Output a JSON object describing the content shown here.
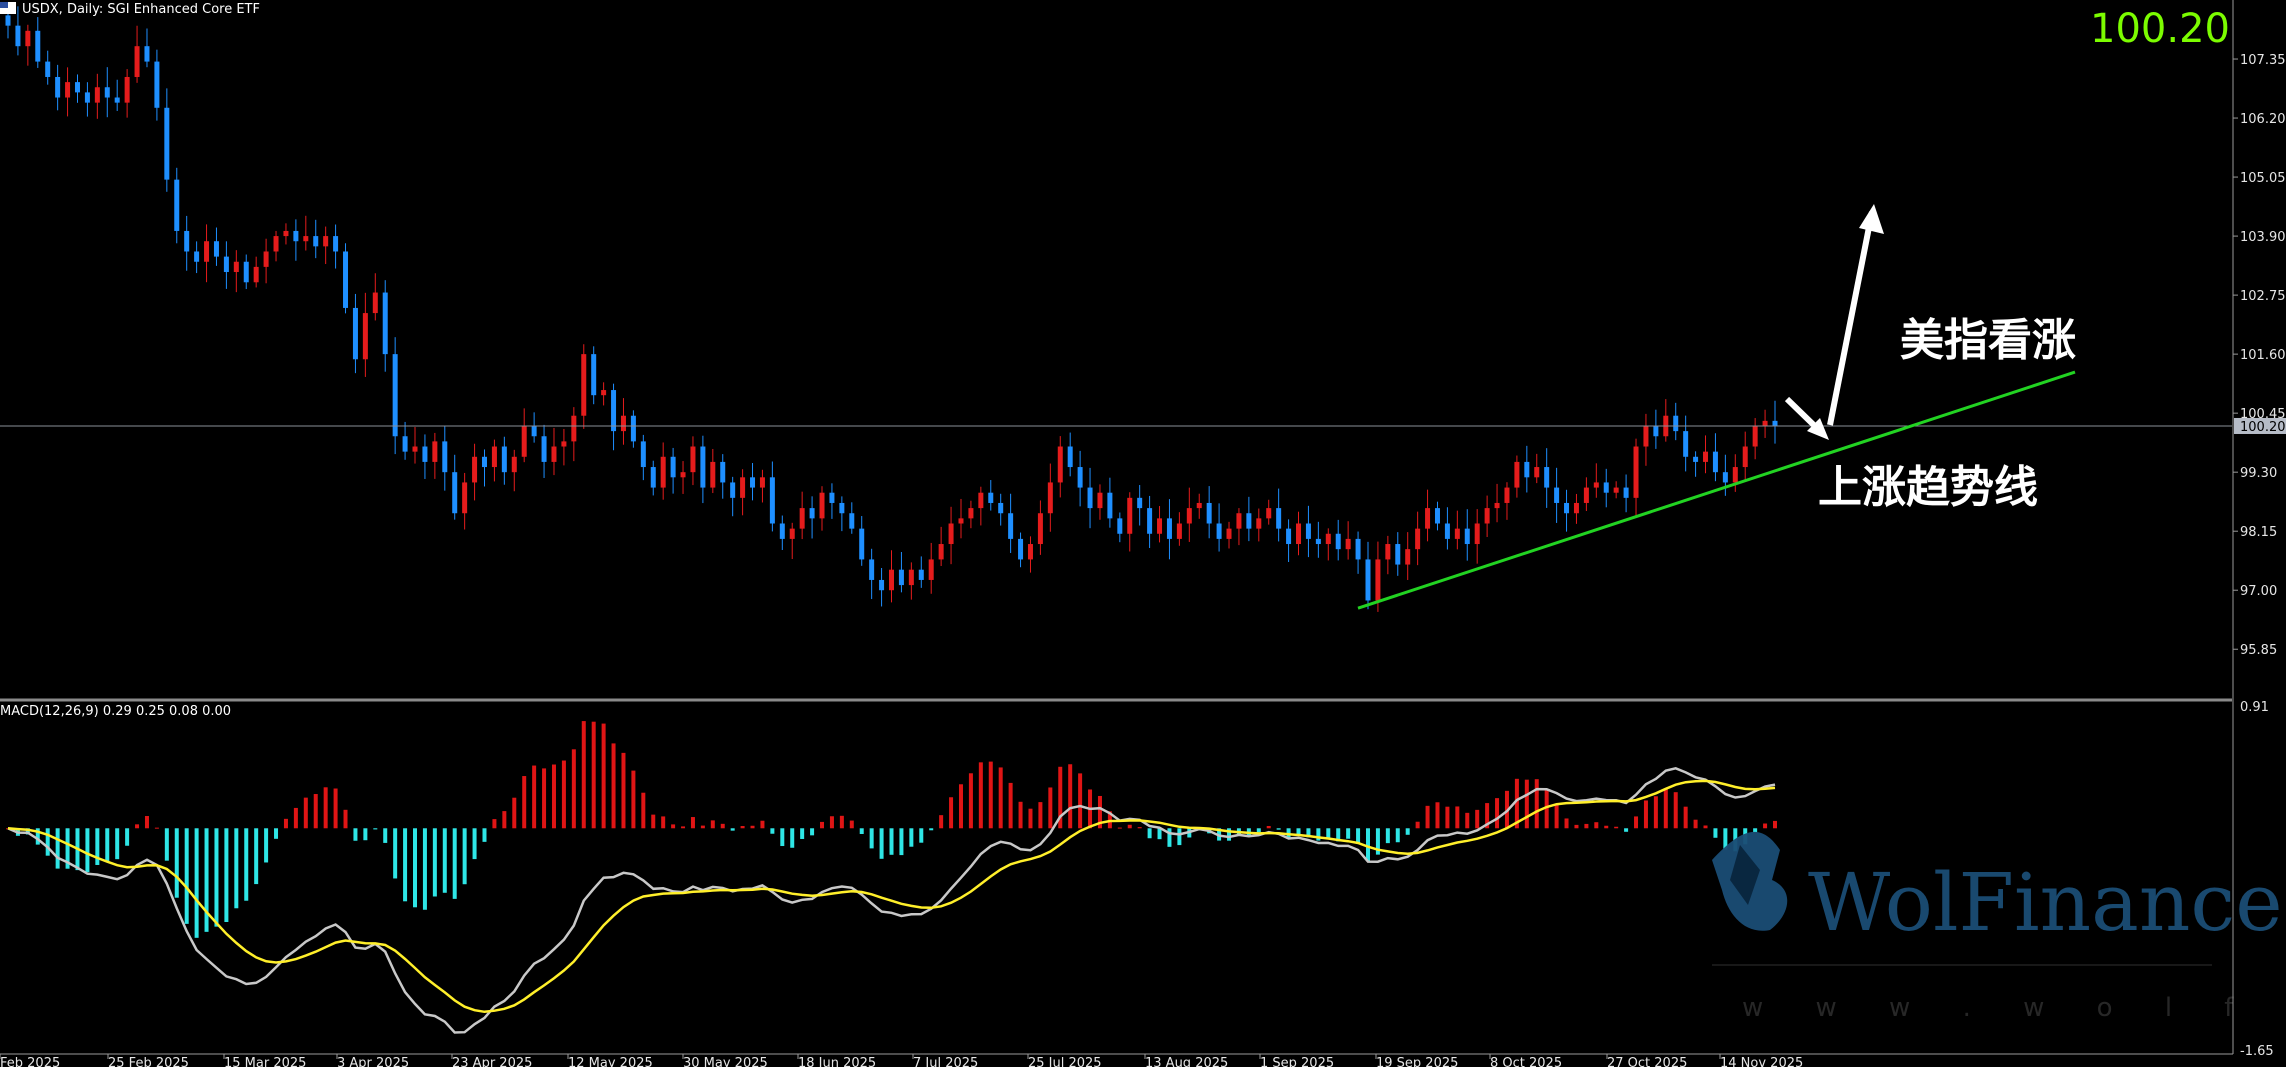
{
  "header": {
    "symbol_label": "USDX, Daily:  SGI Enhanced Core ETF",
    "current_price": "100.20",
    "current_price_tag": "100.20"
  },
  "annotations": {
    "bullish_text": "美指看涨",
    "trendline_text": "上涨趋势线"
  },
  "watermark": {
    "name": "WolFinance",
    "url": "w w w . w o l f i n a n c e . c o m"
  },
  "colors": {
    "background": "#000000",
    "up_candle": "#e51c1c",
    "down_candle": "#1e8fff",
    "trendline": "#22d322",
    "macd_pos": "#e01515",
    "macd_neg": "#2ee6e6",
    "macd_line": "#c8c8c8",
    "signal_line": "#ffef2a",
    "price_text": "#7cfc00"
  },
  "chart_data": [
    {
      "type": "candlestick",
      "title": "USDX, Daily:  SGI Enhanced Core ETF",
      "ylim": [
        94.9,
        108.5
      ],
      "y_ticks": [
        "107.35",
        "106.20",
        "105.05",
        "103.90",
        "102.75",
        "101.60",
        "100.45",
        "99.30",
        "98.15",
        "97.00",
        "95.85"
      ],
      "x_ticks": [
        "Feb 2025",
        "25 Feb 2025",
        "15 Mar 2025",
        "3 Apr 2025",
        "23 Apr 2025",
        "12 May 2025",
        "30 May 2025",
        "18 Jun 2025",
        "7 Jul 2025",
        "25 Jul 2025",
        "13 Aug 2025",
        "1 Sep 2025",
        "19 Sep 2025",
        "8 Oct 2025",
        "27 Oct 2025",
        "14 Nov 2025"
      ],
      "current_price": 100.2,
      "close_series": [
        108.0,
        107.6,
        107.9,
        107.3,
        107.0,
        106.6,
        106.9,
        106.7,
        106.5,
        106.8,
        106.6,
        106.5,
        107.0,
        107.6,
        107.3,
        106.4,
        105.0,
        104.0,
        103.6,
        103.4,
        103.8,
        103.5,
        103.2,
        103.4,
        103.0,
        103.3,
        103.6,
        103.9,
        104.0,
        103.8,
        103.9,
        103.7,
        103.9,
        103.6,
        102.5,
        101.5,
        102.4,
        102.8,
        101.6,
        100.0,
        99.7,
        99.8,
        99.5,
        99.9,
        99.3,
        98.5,
        99.1,
        99.6,
        99.4,
        99.8,
        99.3,
        99.6,
        100.2,
        100.0,
        99.5,
        99.8,
        99.9,
        100.4,
        101.6,
        100.8,
        100.9,
        100.1,
        100.4,
        99.9,
        99.4,
        99.0,
        99.6,
        99.2,
        99.3,
        99.8,
        99.0,
        99.5,
        99.1,
        98.8,
        99.2,
        99.0,
        99.2,
        98.3,
        98.0,
        98.2,
        98.6,
        98.4,
        98.9,
        98.7,
        98.5,
        98.2,
        97.6,
        97.2,
        97.0,
        97.4,
        97.1,
        97.4,
        97.2,
        97.6,
        97.9,
        98.3,
        98.4,
        98.6,
        98.9,
        98.7,
        98.5,
        98.0,
        97.6,
        97.9,
        98.5,
        99.1,
        99.8,
        99.4,
        99.0,
        98.6,
        98.9,
        98.4,
        98.1,
        98.8,
        98.6,
        98.1,
        98.4,
        98.0,
        98.3,
        98.6,
        98.7,
        98.3,
        98.0,
        98.2,
        98.5,
        98.2,
        98.4,
        98.6,
        98.2,
        97.9,
        98.3,
        98.0,
        97.9,
        98.1,
        97.8,
        98.0,
        97.6,
        96.8,
        97.6,
        97.9,
        97.5,
        97.8,
        98.2,
        98.6,
        98.3,
        98.0,
        98.2,
        97.9,
        98.3,
        98.6,
        98.7,
        99.0,
        99.5,
        99.2,
        99.4,
        99.0,
        98.7,
        98.5,
        98.7,
        99.0,
        99.1,
        98.9,
        99.0,
        98.8,
        99.8,
        100.2,
        100.0,
        100.4,
        100.1,
        99.6,
        99.5,
        99.7,
        99.3,
        99.1,
        99.4,
        99.8,
        100.2,
        100.3,
        100.2
      ]
    },
    {
      "type": "macd",
      "title": "MACD(12,26,9) 0.29 0.25 0.08 0.00",
      "params": [
        12,
        26,
        9
      ],
      "values": {
        "macd": 0.29,
        "signal": 0.25,
        "histogram": 0.08,
        "zero": 0.0
      },
      "ylim": [
        -1.65,
        0.91
      ],
      "y_ticks": [
        "0.91",
        "-1.65"
      ]
    }
  ]
}
